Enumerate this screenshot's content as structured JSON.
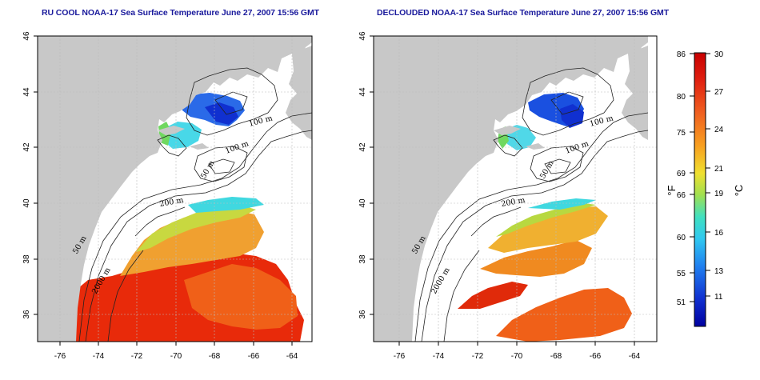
{
  "panels": [
    {
      "title": "RU COOL NOAA-17 Sea Surface Temperature June 27, 2007 15:56 GMT",
      "x_ticks": [
        "-76",
        "-74",
        "-72",
        "-70",
        "-68",
        "-66",
        "-64"
      ],
      "y_ticks": [
        "36",
        "38",
        "40",
        "42",
        "44",
        "46"
      ],
      "contour_labels": [
        "100 m",
        "100 m",
        "50 m",
        "200 m",
        "50 m",
        "2000 m"
      ]
    },
    {
      "title": "DECLOUDED NOAA-17 Sea Surface Temperature June 27, 2007 15:56 GMT",
      "x_ticks": [
        "-76",
        "-74",
        "-72",
        "-70",
        "-68",
        "-66",
        "-64"
      ],
      "y_ticks": [
        "36",
        "38",
        "40",
        "42",
        "44",
        "46"
      ],
      "contour_labels": [
        "100 m",
        "100 m",
        "50 m",
        "200 m",
        "50 m",
        "2000 m"
      ]
    }
  ],
  "colorbar": {
    "fahrenheit_ticks": [
      "86",
      "80",
      "75",
      "69",
      "66",
      "60",
      "55",
      "51"
    ],
    "celsius_ticks": [
      "30",
      "27",
      "24",
      "21",
      "19",
      "16",
      "13",
      "11"
    ],
    "fahrenheit_unit": "°F",
    "celsius_unit": "°C",
    "gradient_colors": [
      "#c80000",
      "#e83010",
      "#f07020",
      "#f8b020",
      "#e8e030",
      "#80e060",
      "#30e0e0",
      "#20a0f0",
      "#1040e0",
      "#0000a0"
    ]
  },
  "colors": {
    "land": "#c8c8c8",
    "ocean": "#ffffff",
    "title": "#1a1a9c"
  }
}
